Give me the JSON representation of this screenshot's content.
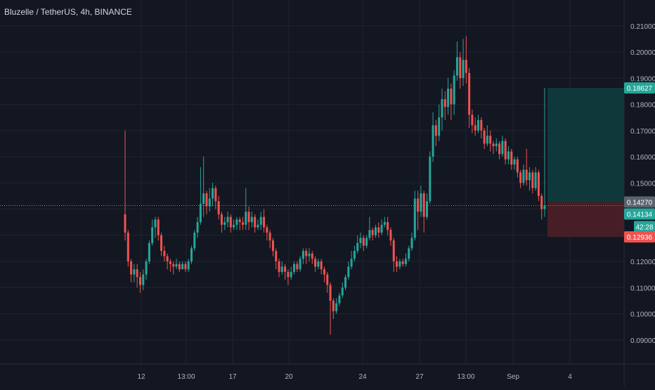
{
  "header": {
    "symbol_title": "Bluzelle / TetherUS, 4h, BINANCE"
  },
  "colors": {
    "background": "#131722",
    "grid": "#1f2330",
    "axis_text": "#b2b5be",
    "up": "#26a69a",
    "down": "#ef5350",
    "target_zone": "#0f3a3c",
    "stop_zone": "#4a1f27",
    "price_line": "#7e8496"
  },
  "price_axis": {
    "ticks": [
      "0.21000",
      "0.20000",
      "0.19000",
      "0.18000",
      "0.17000",
      "0.16000",
      "0.15000",
      "0.12000",
      "0.11000",
      "0.10000",
      "0.09000"
    ],
    "labels": [
      {
        "text": "0.18627",
        "color": "#26a69a"
      },
      {
        "text": "0.14270",
        "color": "#5d6270"
      },
      {
        "text": "0.14134",
        "color": "#26a69a"
      },
      {
        "text": "42:28",
        "color": "#26a69a"
      },
      {
        "text": "0.12936",
        "color": "#ef5350"
      }
    ]
  },
  "time_axis": {
    "labels": [
      "12",
      "13:00",
      "17",
      "20",
      "24",
      "27",
      "13:00",
      "Sep",
      "4"
    ]
  },
  "chart_data": {
    "type": "candlestick",
    "title": "Bluzelle / TetherUS, 4h, BINANCE",
    "ylim": [
      0.08,
      0.216
    ],
    "grid": true,
    "position_tool": {
      "entry": 0.1427,
      "target": 0.18627,
      "stop": 0.12936
    },
    "last_price": 0.14134,
    "countdown": "42:28",
    "candles": [
      [
        0.138,
        0.131,
        0.17,
        0.128
      ],
      [
        0.131,
        0.12,
        0.132,
        0.118
      ],
      [
        0.12,
        0.115,
        0.121,
        0.112
      ],
      [
        0.115,
        0.117,
        0.119,
        0.112
      ],
      [
        0.117,
        0.114,
        0.119,
        0.11
      ],
      [
        0.114,
        0.111,
        0.116,
        0.108
      ],
      [
        0.111,
        0.115,
        0.117,
        0.109
      ],
      [
        0.115,
        0.12,
        0.121,
        0.113
      ],
      [
        0.12,
        0.127,
        0.128,
        0.119
      ],
      [
        0.127,
        0.133,
        0.136,
        0.126
      ],
      [
        0.133,
        0.136,
        0.137,
        0.129
      ],
      [
        0.136,
        0.13,
        0.137,
        0.128
      ],
      [
        0.13,
        0.124,
        0.131,
        0.122
      ],
      [
        0.124,
        0.122,
        0.126,
        0.12
      ],
      [
        0.122,
        0.12,
        0.123,
        0.117
      ],
      [
        0.12,
        0.119,
        0.121,
        0.116
      ],
      [
        0.119,
        0.118,
        0.12,
        0.115
      ],
      [
        0.118,
        0.119,
        0.121,
        0.117
      ],
      [
        0.119,
        0.117,
        0.12,
        0.116
      ],
      [
        0.117,
        0.119,
        0.12,
        0.117
      ],
      [
        0.119,
        0.117,
        0.12,
        0.116
      ],
      [
        0.117,
        0.12,
        0.121,
        0.116
      ],
      [
        0.12,
        0.125,
        0.126,
        0.119
      ],
      [
        0.125,
        0.131,
        0.132,
        0.124
      ],
      [
        0.131,
        0.135,
        0.137,
        0.129
      ],
      [
        0.135,
        0.142,
        0.156,
        0.134
      ],
      [
        0.142,
        0.146,
        0.16,
        0.137
      ],
      [
        0.146,
        0.141,
        0.147,
        0.138
      ],
      [
        0.141,
        0.144,
        0.148,
        0.139
      ],
      [
        0.144,
        0.148,
        0.15,
        0.141
      ],
      [
        0.148,
        0.143,
        0.149,
        0.14
      ],
      [
        0.143,
        0.138,
        0.145,
        0.136
      ],
      [
        0.138,
        0.134,
        0.139,
        0.131
      ],
      [
        0.134,
        0.135,
        0.137,
        0.132
      ],
      [
        0.135,
        0.137,
        0.139,
        0.133
      ],
      [
        0.137,
        0.133,
        0.138,
        0.131
      ],
      [
        0.133,
        0.134,
        0.136,
        0.132
      ],
      [
        0.134,
        0.136,
        0.137,
        0.132
      ],
      [
        0.136,
        0.135,
        0.137,
        0.132
      ],
      [
        0.135,
        0.134,
        0.137,
        0.132
      ],
      [
        0.134,
        0.139,
        0.148,
        0.132
      ],
      [
        0.139,
        0.135,
        0.141,
        0.132
      ],
      [
        0.135,
        0.137,
        0.139,
        0.133
      ],
      [
        0.137,
        0.133,
        0.138,
        0.131
      ],
      [
        0.133,
        0.134,
        0.136,
        0.132
      ],
      [
        0.134,
        0.137,
        0.139,
        0.132
      ],
      [
        0.137,
        0.133,
        0.14,
        0.131
      ],
      [
        0.133,
        0.131,
        0.134,
        0.128
      ],
      [
        0.131,
        0.128,
        0.132,
        0.125
      ],
      [
        0.128,
        0.124,
        0.129,
        0.122
      ],
      [
        0.124,
        0.12,
        0.125,
        0.117
      ],
      [
        0.12,
        0.116,
        0.121,
        0.114
      ],
      [
        0.116,
        0.118,
        0.12,
        0.115
      ],
      [
        0.118,
        0.116,
        0.119,
        0.113
      ],
      [
        0.116,
        0.114,
        0.117,
        0.111
      ],
      [
        0.114,
        0.116,
        0.118,
        0.113
      ],
      [
        0.116,
        0.119,
        0.12,
        0.115
      ],
      [
        0.119,
        0.117,
        0.12,
        0.116
      ],
      [
        0.117,
        0.121,
        0.122,
        0.116
      ],
      [
        0.121,
        0.124,
        0.125,
        0.119
      ],
      [
        0.124,
        0.122,
        0.125,
        0.119
      ],
      [
        0.122,
        0.123,
        0.125,
        0.12
      ],
      [
        0.123,
        0.121,
        0.124,
        0.119
      ],
      [
        0.121,
        0.118,
        0.122,
        0.116
      ],
      [
        0.118,
        0.12,
        0.121,
        0.117
      ],
      [
        0.12,
        0.117,
        0.121,
        0.115
      ],
      [
        0.117,
        0.115,
        0.118,
        0.112
      ],
      [
        0.115,
        0.111,
        0.116,
        0.108
      ],
      [
        0.111,
        0.105,
        0.112,
        0.092
      ],
      [
        0.105,
        0.101,
        0.106,
        0.098
      ],
      [
        0.101,
        0.104,
        0.106,
        0.1
      ],
      [
        0.104,
        0.107,
        0.108,
        0.103
      ],
      [
        0.107,
        0.11,
        0.112,
        0.106
      ],
      [
        0.11,
        0.114,
        0.115,
        0.109
      ],
      [
        0.114,
        0.118,
        0.12,
        0.113
      ],
      [
        0.118,
        0.121,
        0.124,
        0.117
      ],
      [
        0.121,
        0.124,
        0.126,
        0.12
      ],
      [
        0.124,
        0.127,
        0.13,
        0.123
      ],
      [
        0.127,
        0.129,
        0.131,
        0.125
      ],
      [
        0.129,
        0.126,
        0.13,
        0.124
      ],
      [
        0.126,
        0.129,
        0.13,
        0.125
      ],
      [
        0.129,
        0.132,
        0.137,
        0.128
      ],
      [
        0.132,
        0.13,
        0.133,
        0.128
      ],
      [
        0.13,
        0.133,
        0.134,
        0.129
      ],
      [
        0.133,
        0.131,
        0.135,
        0.129
      ],
      [
        0.131,
        0.134,
        0.136,
        0.13
      ],
      [
        0.134,
        0.135,
        0.137,
        0.133
      ],
      [
        0.135,
        0.132,
        0.137,
        0.13
      ],
      [
        0.132,
        0.128,
        0.133,
        0.126
      ],
      [
        0.128,
        0.12,
        0.129,
        0.116
      ],
      [
        0.12,
        0.118,
        0.122,
        0.116
      ],
      [
        0.118,
        0.12,
        0.121,
        0.117
      ],
      [
        0.12,
        0.119,
        0.121,
        0.118
      ],
      [
        0.119,
        0.121,
        0.123,
        0.118
      ],
      [
        0.121,
        0.125,
        0.126,
        0.12
      ],
      [
        0.125,
        0.129,
        0.131,
        0.124
      ],
      [
        0.129,
        0.144,
        0.147,
        0.128
      ],
      [
        0.144,
        0.139,
        0.147,
        0.132
      ],
      [
        0.139,
        0.146,
        0.149,
        0.137
      ],
      [
        0.146,
        0.137,
        0.147,
        0.131
      ],
      [
        0.137,
        0.143,
        0.146,
        0.136
      ],
      [
        0.143,
        0.16,
        0.162,
        0.142
      ],
      [
        0.16,
        0.172,
        0.177,
        0.158
      ],
      [
        0.172,
        0.168,
        0.174,
        0.164
      ],
      [
        0.168,
        0.175,
        0.18,
        0.166
      ],
      [
        0.175,
        0.182,
        0.186,
        0.17
      ],
      [
        0.182,
        0.179,
        0.185,
        0.174
      ],
      [
        0.179,
        0.186,
        0.19,
        0.176
      ],
      [
        0.186,
        0.18,
        0.188,
        0.174
      ],
      [
        0.18,
        0.191,
        0.193,
        0.176
      ],
      [
        0.191,
        0.198,
        0.204,
        0.189
      ],
      [
        0.198,
        0.19,
        0.2,
        0.186
      ],
      [
        0.19,
        0.197,
        0.205,
        0.187
      ],
      [
        0.197,
        0.192,
        0.206,
        0.188
      ],
      [
        0.192,
        0.176,
        0.194,
        0.171
      ],
      [
        0.176,
        0.172,
        0.178,
        0.169
      ],
      [
        0.172,
        0.17,
        0.175,
        0.168
      ],
      [
        0.17,
        0.174,
        0.176,
        0.169
      ],
      [
        0.174,
        0.17,
        0.175,
        0.167
      ],
      [
        0.17,
        0.165,
        0.171,
        0.163
      ],
      [
        0.165,
        0.168,
        0.172,
        0.164
      ],
      [
        0.168,
        0.165,
        0.17,
        0.162
      ],
      [
        0.165,
        0.164,
        0.166,
        0.161
      ],
      [
        0.164,
        0.165,
        0.167,
        0.162
      ],
      [
        0.165,
        0.161,
        0.166,
        0.159
      ],
      [
        0.161,
        0.166,
        0.168,
        0.16
      ],
      [
        0.166,
        0.159,
        0.167,
        0.157
      ],
      [
        0.159,
        0.162,
        0.164,
        0.157
      ],
      [
        0.162,
        0.157,
        0.163,
        0.155
      ],
      [
        0.157,
        0.159,
        0.16,
        0.155
      ],
      [
        0.159,
        0.154,
        0.16,
        0.152
      ],
      [
        0.154,
        0.15,
        0.155,
        0.148
      ],
      [
        0.15,
        0.155,
        0.157,
        0.149
      ],
      [
        0.155,
        0.151,
        0.163,
        0.149
      ],
      [
        0.151,
        0.154,
        0.156,
        0.147
      ],
      [
        0.154,
        0.148,
        0.155,
        0.146
      ],
      [
        0.148,
        0.154,
        0.156,
        0.147
      ],
      [
        0.154,
        0.145,
        0.155,
        0.143
      ],
      [
        0.145,
        0.14,
        0.146,
        0.136
      ],
      [
        0.14,
        0.14134,
        0.1863,
        0.137
      ]
    ]
  }
}
